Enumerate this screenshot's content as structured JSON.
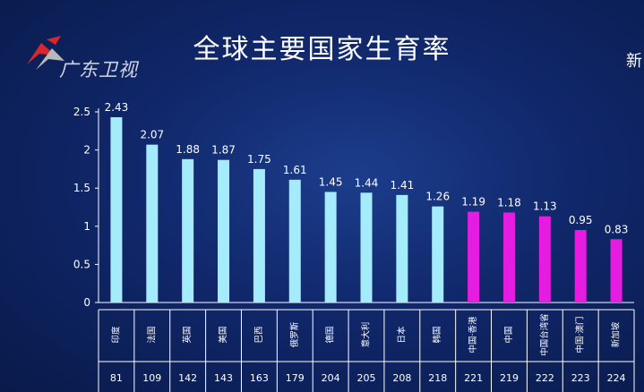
{
  "logo": {
    "text": "广东卫视"
  },
  "edge_glyph": "新",
  "chart_data": {
    "type": "bar",
    "title": "全球主要国家生育率",
    "categories": [
      "印度",
      "法国",
      "英国",
      "美国",
      "巴西",
      "俄罗斯",
      "德国",
      "意大利",
      "日本",
      "韩国",
      "中国·香港",
      "中国",
      "中国台湾省",
      "中国·澳门",
      "新加坡"
    ],
    "values": [
      2.43,
      2.07,
      1.88,
      1.87,
      1.75,
      1.61,
      1.45,
      1.44,
      1.41,
      1.26,
      1.19,
      1.18,
      1.13,
      0.95,
      0.83
    ],
    "value_labels": [
      "2.43",
      "2.07",
      "1.88",
      "1.87",
      "1.75",
      "1.61",
      "1.45",
      "1.44",
      "1.41",
      "1.26",
      "1.19",
      "1.18",
      "1.13",
      "0.95",
      "0.83"
    ],
    "ranks": [
      "81",
      "109",
      "142",
      "143",
      "163",
      "179",
      "204",
      "205",
      "208",
      "218",
      "221",
      "219",
      "222",
      "223",
      "224"
    ],
    "ylim": [
      0,
      2.5
    ],
    "yticks": [
      "0",
      "0.5",
      "1",
      "1.5",
      "2",
      "2.5"
    ],
    "grid": false,
    "colors": {
      "standard": "#a4ecfb",
      "highlight": "#e51de0"
    },
    "highlighted_categories": [
      "中国·香港",
      "中国",
      "中国台湾省",
      "中国·澳门",
      "新加坡"
    ]
  }
}
